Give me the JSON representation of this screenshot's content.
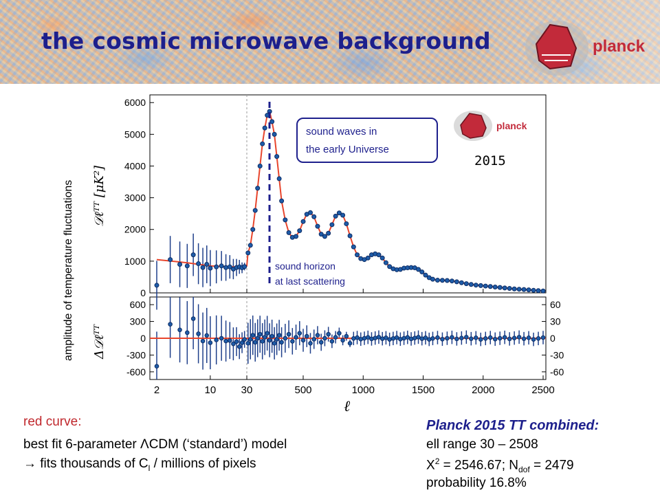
{
  "slide": {
    "title": "the cosmic microwave background",
    "logo_text": "planck",
    "inset_logo_text": "planck",
    "year": "2015",
    "left_notes": {
      "heading": "red curve:",
      "model": "best fit 6-parameter ΛCDM (‘standard’) model",
      "fit_prefix": " fits thousands of C",
      "fit_sub": "l",
      "fit_suffix": " / millions of pixels"
    },
    "summary": {
      "title": "Planck 2015 TT combined:",
      "ell_range": "ell range 30 – 2508",
      "chi_prefix": "X",
      "chi_sup": "2",
      "chi_mid": " = 2546.67; N",
      "chi_sub": "dof",
      "chi_suffix": " = 2479",
      "probability": "probability 16.8%"
    }
  },
  "chart_data": {
    "type": "scatter",
    "ylabel_outer": "amplitude of temperature fluctuations",
    "ylabel_top": "𝒟ℓᵀᵀ [μK²]",
    "ylabel_bottom": "Δ𝒟ℓᵀᵀ",
    "xlabel": "ℓ",
    "x_ticks": [
      "2",
      "10",
      "30",
      "500",
      "1000",
      "1500",
      "2000",
      "2500"
    ],
    "top_panel": {
      "ylim": [
        0,
        6200
      ],
      "y_ticks": [
        "0",
        "1000",
        "2000",
        "3000",
        "4000",
        "5000",
        "6000"
      ],
      "points_low_ell": [
        [
          2,
          240
        ],
        [
          3,
          1050
        ],
        [
          4,
          900
        ],
        [
          5,
          850
        ],
        [
          6,
          1200
        ],
        [
          7,
          920
        ],
        [
          8,
          800
        ],
        [
          9,
          900
        ],
        [
          10,
          780
        ],
        [
          12,
          820
        ],
        [
          14,
          850
        ],
        [
          16,
          800
        ],
        [
          18,
          820
        ],
        [
          20,
          750
        ],
        [
          22,
          800
        ],
        [
          24,
          820
        ],
        [
          26,
          790
        ],
        [
          28,
          830
        ]
      ],
      "points_high_ell": [
        [
          40,
          1260
        ],
        [
          60,
          1500
        ],
        [
          80,
          2000
        ],
        [
          100,
          2600
        ],
        [
          120,
          3300
        ],
        [
          140,
          4000
        ],
        [
          160,
          4700
        ],
        [
          180,
          5200
        ],
        [
          200,
          5600
        ],
        [
          220,
          5720
        ],
        [
          240,
          5400
        ],
        [
          260,
          5000
        ],
        [
          280,
          4300
        ],
        [
          300,
          3600
        ],
        [
          320,
          2900
        ],
        [
          350,
          2300
        ],
        [
          380,
          1900
        ],
        [
          410,
          1750
        ],
        [
          440,
          1780
        ],
        [
          470,
          1960
        ],
        [
          500,
          2250
        ],
        [
          530,
          2480
        ],
        [
          560,
          2530
        ],
        [
          590,
          2400
        ],
        [
          620,
          2100
        ],
        [
          650,
          1850
        ],
        [
          680,
          1780
        ],
        [
          710,
          1880
        ],
        [
          740,
          2150
        ],
        [
          770,
          2420
        ],
        [
          800,
          2520
        ],
        [
          830,
          2450
        ],
        [
          860,
          2180
        ],
        [
          890,
          1800
        ],
        [
          920,
          1450
        ],
        [
          950,
          1200
        ],
        [
          980,
          1080
        ],
        [
          1010,
          1050
        ],
        [
          1040,
          1100
        ],
        [
          1070,
          1200
        ],
        [
          1100,
          1230
        ],
        [
          1130,
          1200
        ],
        [
          1160,
          1100
        ],
        [
          1190,
          950
        ],
        [
          1220,
          830
        ],
        [
          1250,
          760
        ],
        [
          1280,
          730
        ],
        [
          1310,
          740
        ],
        [
          1340,
          780
        ],
        [
          1370,
          790
        ],
        [
          1400,
          800
        ],
        [
          1430,
          790
        ],
        [
          1460,
          740
        ],
        [
          1490,
          660
        ],
        [
          1520,
          560
        ],
        [
          1550,
          480
        ],
        [
          1580,
          430
        ],
        [
          1620,
          400
        ],
        [
          1660,
          395
        ],
        [
          1700,
          390
        ],
        [
          1740,
          375
        ],
        [
          1780,
          350
        ],
        [
          1820,
          320
        ],
        [
          1860,
          290
        ],
        [
          1900,
          265
        ],
        [
          1940,
          245
        ],
        [
          1980,
          230
        ],
        [
          2020,
          215
        ],
        [
          2060,
          200
        ],
        [
          2100,
          185
        ],
        [
          2140,
          170
        ],
        [
          2180,
          155
        ],
        [
          2220,
          140
        ],
        [
          2260,
          125
        ],
        [
          2300,
          115
        ],
        [
          2340,
          105
        ],
        [
          2380,
          95
        ],
        [
          2420,
          80
        ],
        [
          2460,
          70
        ],
        [
          2500,
          60
        ]
      ]
    },
    "bottom_panel": {
      "ylim_left": [
        -700,
        700
      ],
      "y_ticks_left": [
        "-600",
        "-300",
        "0",
        "300",
        "600"
      ],
      "ylim_right": [
        -70,
        70
      ],
      "y_ticks_right": [
        "-60",
        "-30",
        "0",
        "30",
        "60"
      ]
    },
    "annotations": {
      "peak_label": "sound waves in\nthe early Universe",
      "peak_label_line1": "sound waves in",
      "peak_label_line2": "the early Universe",
      "horizon_label_line1": "sound horizon",
      "horizon_label_line2": "at last scattering"
    },
    "colors": {
      "curve": "#e8452c",
      "points": "#1e5ca8",
      "title": "#1d1f8c",
      "dashed_line": "#1d1f8c"
    }
  }
}
